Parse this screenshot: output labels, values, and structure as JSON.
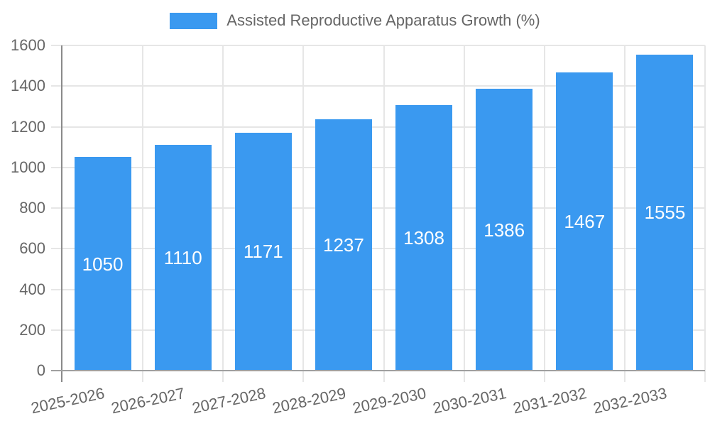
{
  "chart_data": {
    "type": "bar",
    "title": "",
    "legend_label": "Assisted Reproductive Apparatus Growth (%)",
    "legend_position": "top",
    "categories": [
      "2025-2026",
      "2026-2027",
      "2027-2028",
      "2028-2029",
      "2029-2030",
      "2030-2031",
      "2031-2032",
      "2032-2033"
    ],
    "values": [
      1050,
      1110,
      1171,
      1237,
      1308,
      1386,
      1467,
      1555
    ],
    "xlabel": "",
    "ylabel": "",
    "ylim": [
      0,
      1600
    ],
    "ytick_step": 200,
    "yticks": [
      0,
      200,
      400,
      600,
      800,
      1000,
      1200,
      1400,
      1600
    ],
    "grid": true,
    "bar_color": "#3a99f0",
    "value_label_color": "#ffffff",
    "tick_label_color": "#666666",
    "grid_color": "#e6e6e6",
    "axis_color": "#a0a0a0"
  }
}
